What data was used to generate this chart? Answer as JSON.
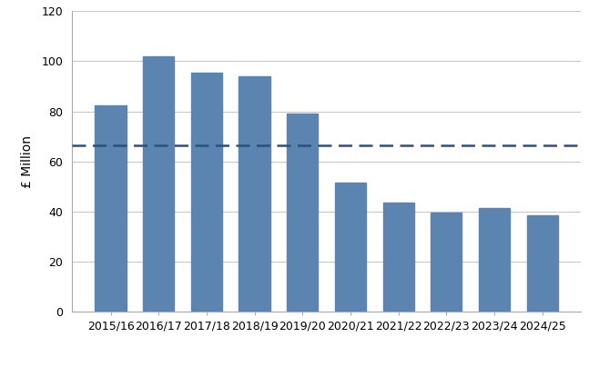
{
  "categories": [
    "2015/16",
    "2016/17",
    "2017/18",
    "2018/19",
    "2019/20",
    "2020/21",
    "2021/22",
    "2022/23",
    "2023/24",
    "2024/25"
  ],
  "values": [
    82.5,
    102.0,
    95.5,
    94.0,
    79.0,
    51.5,
    43.5,
    39.5,
    41.5,
    38.5
  ],
  "bar_color": "#5b84b1",
  "dashed_line_y": 66.5,
  "dashed_line_color": "#2c5080",
  "ylabel": "£ Million",
  "ylim": [
    0,
    120
  ],
  "yticks": [
    0,
    20,
    40,
    60,
    80,
    100,
    120
  ],
  "grid_color": "#c8c8c8",
  "background_color": "#ffffff",
  "bar_width": 0.65,
  "tick_fontsize": 9,
  "ylabel_fontsize": 10
}
